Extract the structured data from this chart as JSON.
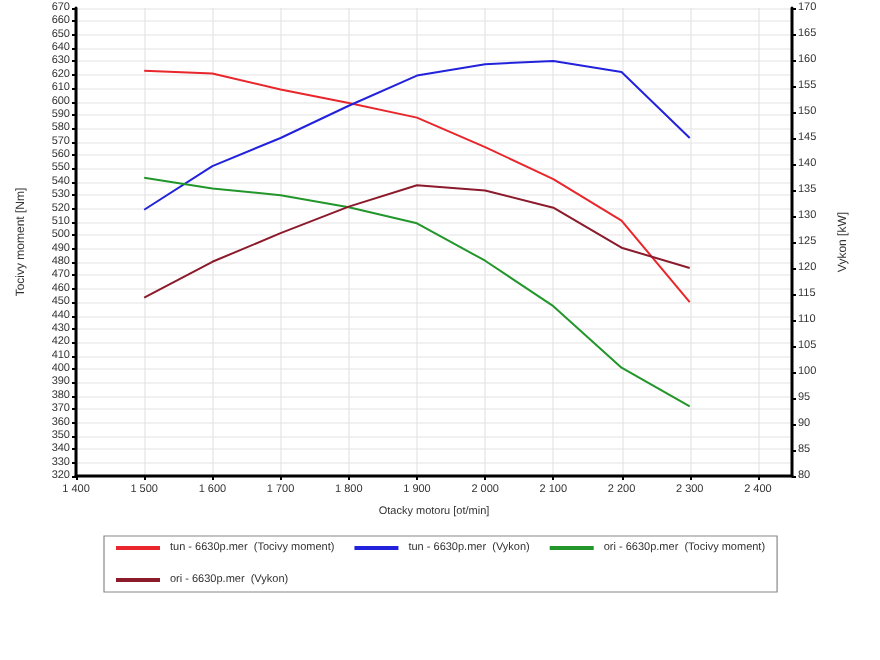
{
  "chart_data": {
    "type": "line",
    "xlabel": "Otacky motoru [ot/min]",
    "ylabel": "Tocivy moment [Nm]",
    "y2label": "Vykon [kW]",
    "x": [
      1500,
      1600,
      1700,
      1800,
      1900,
      2000,
      2100,
      2200,
      2300
    ],
    "series": [
      {
        "name": "tun - 6630p.mer  (Tocivy moment)",
        "color": "#e8262b",
        "values": [
          623,
          621,
          609,
          599,
          588,
          566,
          542,
          511,
          450
        ]
      },
      {
        "name": "tun - 6630p.mer  (Vykon)",
        "color": "#2222dd",
        "axis": "y2",
        "values": [
          131.2,
          139.6,
          145,
          151.2,
          157,
          159.2,
          159.8,
          157.7,
          145
        ]
      },
      {
        "name": "ori - 6630p.mer  (Tocivy moment)",
        "color": "#22962a",
        "values": [
          543,
          535,
          530,
          521,
          509,
          481,
          447,
          401,
          372
        ]
      },
      {
        "name": "ori - 6630p.mer  (Vykon)",
        "color": "#8b1a2b",
        "axis": "y2",
        "values": [
          114.3,
          121.2,
          126.7,
          131.8,
          135.9,
          134.9,
          131.6,
          123.9,
          120
        ]
      }
    ],
    "xlim": [
      1400,
      2450
    ],
    "xticks": [
      {
        "value": 1400,
        "label": "1 400"
      },
      {
        "value": 1500,
        "label": "1 500"
      },
      {
        "value": 1600,
        "label": "1 600"
      },
      {
        "value": 1700,
        "label": "1 700"
      },
      {
        "value": 1800,
        "label": "1 800"
      },
      {
        "value": 1900,
        "label": "1 900"
      },
      {
        "value": 2000,
        "label": "2 000"
      },
      {
        "value": 2100,
        "label": "2 100"
      },
      {
        "value": 2200,
        "label": "2 200"
      },
      {
        "value": 2300,
        "label": "2 300"
      },
      {
        "value": 2400,
        "label": "2 400"
      }
    ],
    "ylim": [
      320,
      670
    ],
    "yticks": [
      320,
      330,
      340,
      350,
      360,
      370,
      380,
      390,
      400,
      410,
      420,
      430,
      440,
      450,
      460,
      470,
      480,
      490,
      500,
      510,
      520,
      530,
      540,
      550,
      560,
      570,
      580,
      590,
      600,
      610,
      620,
      630,
      640,
      650,
      660,
      670
    ],
    "y2lim": [
      80,
      170
    ],
    "y2ticks": [
      80,
      85,
      90,
      95,
      100,
      105,
      110,
      115,
      120,
      125,
      130,
      135,
      140,
      145,
      150,
      155,
      160,
      165,
      170
    ],
    "grid": true,
    "legend": "bottom",
    "marker": "none",
    "line_style": "solid"
  }
}
